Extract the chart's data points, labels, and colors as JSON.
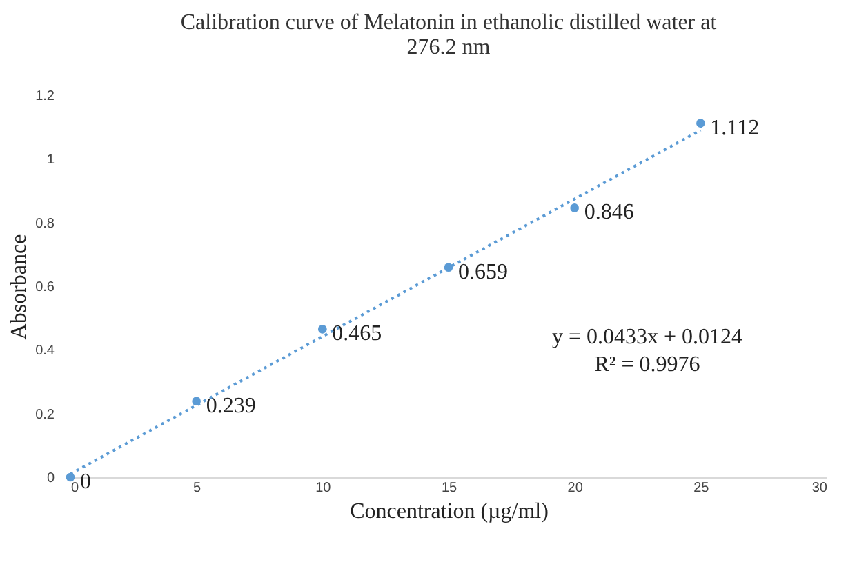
{
  "chart_data": {
    "type": "scatter",
    "title": "Calibration curve of Melatonin in ethanolic distilled water at 276.2 nm",
    "xlabel": "Concentration (µg/ml)",
    "ylabel": "Absorbance",
    "x": [
      0,
      5,
      10,
      15,
      20,
      25
    ],
    "series": [
      {
        "color": "#5b9bd5",
        "values": [
          0,
          0.239,
          0.465,
          0.659,
          0.846,
          1.112
        ],
        "marker": "circle",
        "value_labels": [
          "0",
          "0.239",
          "0.465",
          "0.659",
          "0.846",
          "1.112"
        ]
      },
      {
        "type": "line",
        "color": "#5b9bd5",
        "x": [
          0,
          25
        ],
        "values": [
          0.01,
          1.09
        ],
        "line_style": "dotted",
        "marker": "none"
      }
    ],
    "annotations": [
      "y = 0.0433x + 0.0124",
      "R² = 0.9976"
    ],
    "xlim": [
      0,
      30
    ],
    "xticks": [
      0,
      5,
      10,
      15,
      20,
      25,
      30
    ],
    "ylim": [
      0,
      1.2
    ],
    "yticks": [
      0,
      0.2,
      0.4,
      0.6,
      0.8,
      1,
      1.2
    ],
    "grid": false
  }
}
